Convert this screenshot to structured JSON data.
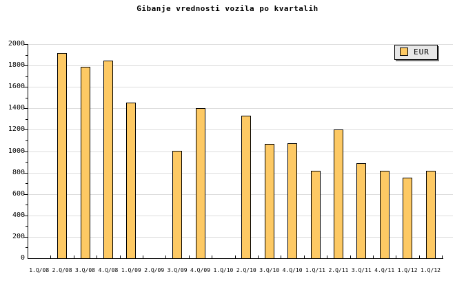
{
  "chart_data": {
    "type": "bar",
    "title": "Gibanje vrednosti vozila po kvartalih",
    "categories": [
      "1.Q/08",
      "2.Q/08",
      "3.Q/08",
      "4.Q/08",
      "1.Q/09",
      "2.Q/09",
      "3.Q/09",
      "4.Q/09",
      "1.Q/10",
      "2.Q/10",
      "3.Q/10",
      "4.Q/10",
      "1.Q/11",
      "2.Q/11",
      "3.Q/11",
      "4.Q/11",
      "1.Q/12",
      "1.Q/12"
    ],
    "series": [
      {
        "name": "EUR",
        "color": "#FDC964",
        "values": [
          null,
          1915,
          1785,
          1845,
          1455,
          null,
          1005,
          1400,
          null,
          1330,
          1070,
          1075,
          815,
          1200,
          885,
          815,
          755,
          815
        ]
      }
    ],
    "ylim": [
      0,
      2000
    ],
    "ytick_step": 200,
    "ytick_minor_step": 100,
    "ytick_labels": [
      "0",
      "200",
      "400",
      "600",
      "800",
      "1000",
      "1200",
      "1400",
      "1600",
      "1800",
      "2000"
    ],
    "xlabel": "",
    "ylabel": "",
    "grid": "horizontal",
    "legend_position": "top-right",
    "colors": {
      "background": "#FFFFFF",
      "bar_fill": "#FDC964",
      "bar_border": "#000000",
      "gridline": "#DCDCDC",
      "axis": "#000000",
      "legend_bg": "#E8E8E8",
      "legend_shadow": "#777777",
      "text": "#000000"
    }
  }
}
